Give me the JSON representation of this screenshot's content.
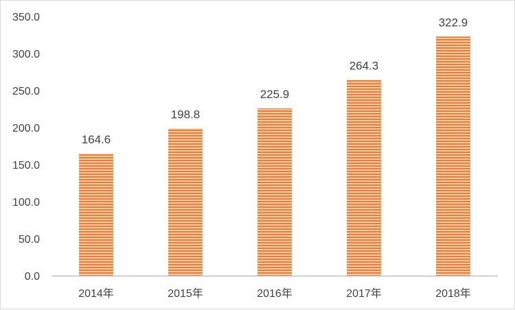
{
  "chart_data": {
    "type": "bar",
    "title": "",
    "xlabel": "",
    "ylabel": "",
    "categories": [
      "2014年",
      "2015年",
      "2016年",
      "2017年",
      "2018年"
    ],
    "values": [
      164.6,
      198.8,
      225.9,
      264.3,
      322.9
    ],
    "value_labels": [
      "164.6",
      "198.8",
      "225.9",
      "264.3",
      "322.9"
    ],
    "ylim": [
      0,
      350
    ],
    "yticks": [
      "0.0",
      "50.0",
      "100.0",
      "150.0",
      "200.0",
      "250.0",
      "300.0",
      "350.0"
    ],
    "ytick_values": [
      0,
      50,
      100,
      150,
      200,
      250,
      300,
      350
    ],
    "grid": false,
    "legend": "none",
    "colors": {
      "bar_stripe": "#ed7d31",
      "bar_gap": "#f8cbad",
      "text": "#404040",
      "axis": "#bfbfbf"
    }
  }
}
